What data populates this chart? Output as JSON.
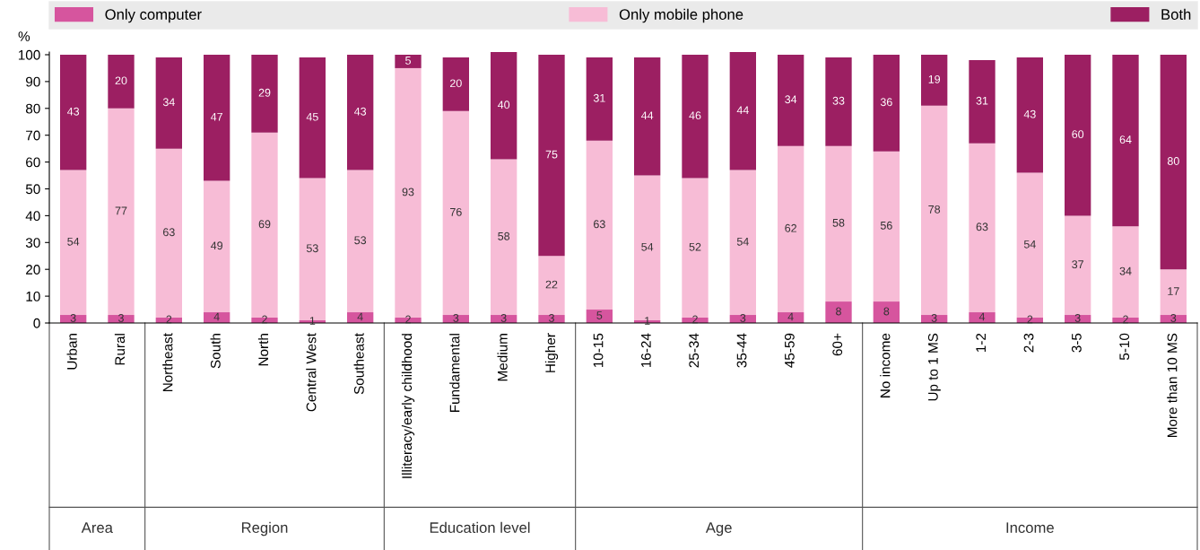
{
  "chart_data": {
    "type": "bar",
    "stacked": true,
    "data_labels": true,
    "legend": "top",
    "ylabel": "%",
    "categories": [
      "Urban",
      "Rural",
      "Northeast",
      "South",
      "North",
      "Central West",
      "Southeast",
      "Illiteracy/early childhood",
      "Fundamental",
      "Medium",
      "Higher",
      "10-15",
      "16-24",
      "25-34",
      "35-44",
      "45-59",
      "60+",
      "No income",
      "Up to 1 MS",
      "1-2",
      "2-3",
      "3-5",
      "5-10",
      "More than 10 MS"
    ],
    "series": [
      {
        "name": "Only computer",
        "color": "#d6559e",
        "values": [
          3,
          3,
          2,
          4,
          2,
          1,
          4,
          2,
          3,
          3,
          3,
          5,
          1,
          2,
          3,
          4,
          8,
          8,
          3,
          4,
          2,
          3,
          2,
          3
        ]
      },
      {
        "name": "Only mobile phone",
        "color": "#f7bcd6",
        "values": [
          54,
          77,
          63,
          49,
          69,
          53,
          53,
          93,
          76,
          58,
          22,
          63,
          54,
          52,
          54,
          62,
          58,
          56,
          78,
          63,
          54,
          37,
          34,
          17
        ]
      },
      {
        "name": "Both",
        "color": "#9c1f62",
        "values": [
          43,
          20,
          34,
          47,
          29,
          45,
          43,
          5,
          20,
          40,
          75,
          31,
          44,
          46,
          44,
          34,
          33,
          36,
          19,
          31,
          43,
          60,
          64,
          80
        ]
      }
    ],
    "ylim": [
      0,
      101
    ],
    "yticks": [
      0,
      10,
      20,
      30,
      40,
      50,
      60,
      70,
      80,
      90,
      100
    ],
    "annotations": [
      "Area",
      "Region",
      "Education level",
      "Age",
      "Income"
    ]
  }
}
